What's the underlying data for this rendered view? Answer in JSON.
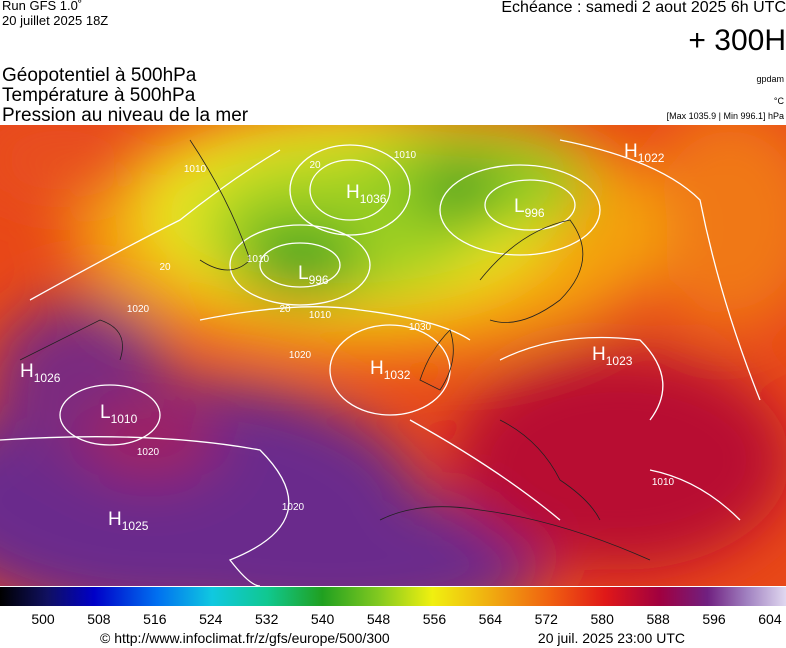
{
  "header": {
    "run": "Run GFS 1.0˚",
    "run_date": "20 juillet 2025 18Z",
    "valid": "Echéance : samedi 2 aout 2025 6h UTC",
    "lead": "+ 300H",
    "fields": [
      "Géopotentiel à 500hPa",
      "Température à 500hPa",
      "Pression au niveau de la mer"
    ],
    "units": [
      "gpdam",
      "°C",
      "[Max 1035.9 | Min 996.1] hPa"
    ]
  },
  "map": {
    "pressure_centers": [
      {
        "letter": "H",
        "value": "1036"
      },
      {
        "letter": "L",
        "value": "996"
      },
      {
        "letter": "L",
        "value": "996"
      },
      {
        "letter": "H",
        "value": "1023"
      },
      {
        "letter": "H",
        "value": "1026"
      },
      {
        "letter": "H",
        "value": "1032"
      },
      {
        "letter": "L",
        "value": "1010"
      },
      {
        "letter": "H",
        "value": "1025"
      },
      {
        "letter": "H",
        "value": "1022"
      }
    ],
    "contour_labels": [
      "1010",
      "1010",
      "1010",
      "1020",
      "1020",
      "1020",
      "1020",
      "1030",
      "1010",
      "1010",
      "20",
      "20",
      "20"
    ]
  },
  "colorbar": {
    "ticks": [
      500,
      508,
      516,
      524,
      532,
      540,
      548,
      556,
      564,
      572,
      580,
      588,
      596,
      604
    ]
  },
  "footer": {
    "url": "© http://www.infoclimat.fr/z/gfs/europe/500/300",
    "generated": "20 juil. 2025 23:00 UTC"
  }
}
